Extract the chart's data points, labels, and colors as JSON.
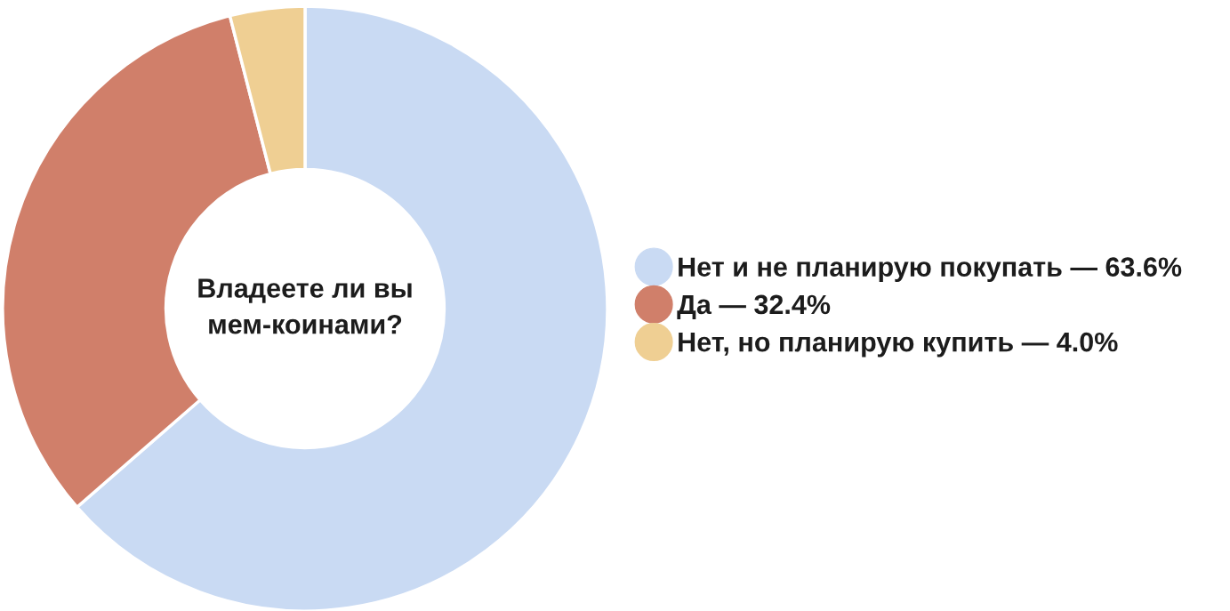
{
  "chart_data": {
    "type": "donut",
    "title": "Владеете ли вы\nмем-коинами?",
    "categories": [
      "Нет и не планирую покупать — 63.6%",
      "Да — 32.4%",
      "Нет, но планирую купить — 4.0%"
    ],
    "values": [
      63.6,
      32.4,
      4.0
    ],
    "colors": [
      "#c9daf3",
      "#d07f6a",
      "#efcf93"
    ],
    "legend": "right"
  }
}
